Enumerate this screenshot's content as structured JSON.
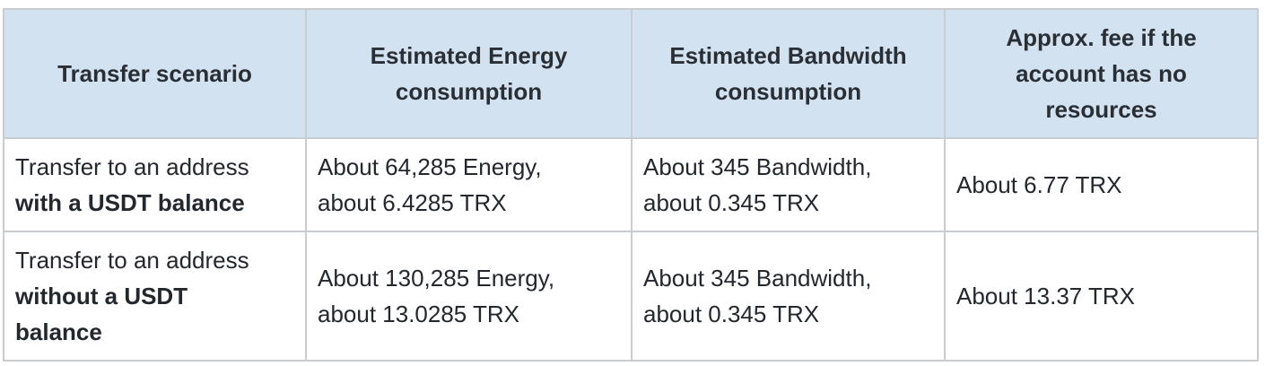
{
  "table": {
    "headers": [
      "Transfer scenario",
      "Estimated Energy consumption",
      "Estimated Bandwidth consumption",
      "Approx. fee if the account has no resources"
    ],
    "rows": [
      {
        "scenario_prefix": "Transfer to an address",
        "scenario_bold": "with a USDT balance",
        "energy_line1": "About 64,285 Energy,",
        "energy_line2": "about 6.4285 TRX",
        "bandwidth_line1": "About 345 Bandwidth,",
        "bandwidth_line2": "about 0.345 TRX",
        "fee": "About 6.77 TRX"
      },
      {
        "scenario_prefix": "Transfer to an address",
        "scenario_bold_line1": "without a USDT",
        "scenario_bold_line2": "balance",
        "energy_line1": "About 130,285 Energy,",
        "energy_line2": "about 13.0285 TRX",
        "bandwidth_line1": "About 345 Bandwidth,",
        "bandwidth_line2": "about 0.345 TRX",
        "fee": "About 13.37 TRX"
      }
    ]
  }
}
